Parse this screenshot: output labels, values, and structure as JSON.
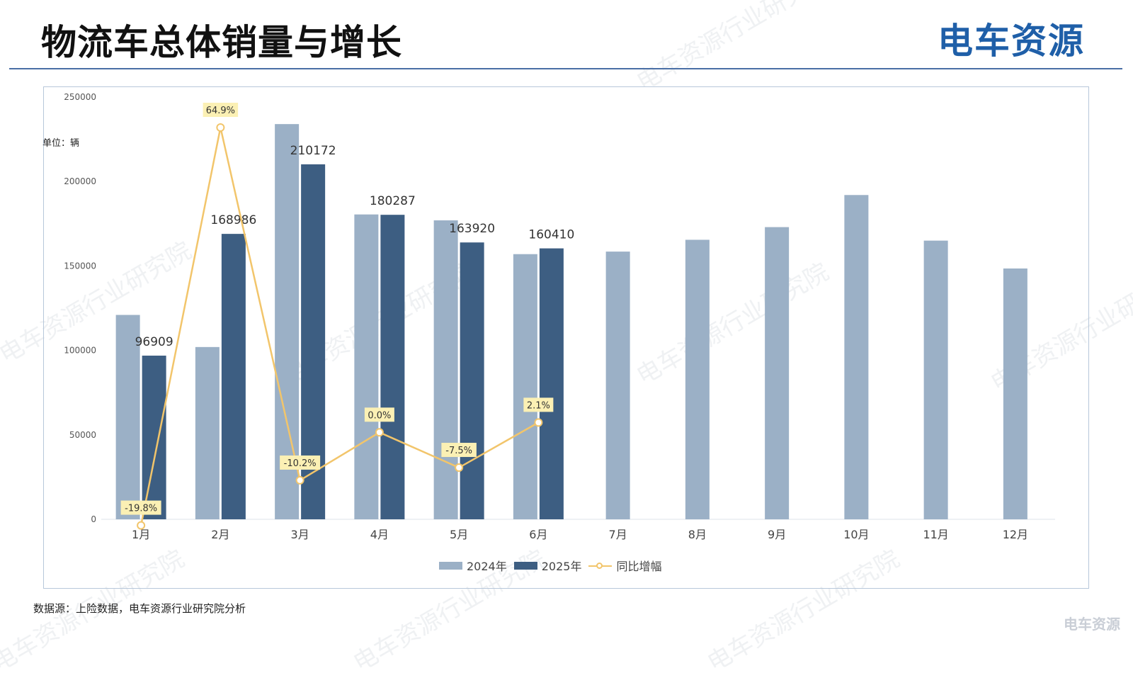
{
  "header": {
    "title": "物流车总体销量与增长",
    "logo_text": "电车资源"
  },
  "unit_label": "单位：辆",
  "source_note": "数据源：上险数据，电车资源行业研究院分析",
  "watermark_text": "电车资源行业研究院",
  "bottom_logo": "电车资源",
  "colors": {
    "series_2024": "#9bb0c6",
    "series_2025": "#3d5e82",
    "growth_line": "#f2c56b",
    "label_bg": "#fbf0b4",
    "title_rule": "#4a6fa5"
  },
  "chart_data": {
    "type": "bar",
    "categories": [
      "1月",
      "2月",
      "3月",
      "4月",
      "5月",
      "6月",
      "7月",
      "8月",
      "9月",
      "10月",
      "11月",
      "12月"
    ],
    "ylim": [
      0,
      250000
    ],
    "yticks": [
      "0",
      "50000",
      "100000",
      "150000",
      "200000",
      "250000"
    ],
    "legend_position": "bottom",
    "grid": false,
    "series": [
      {
        "name": "2024年",
        "values": [
          121000,
          102000,
          234000,
          180500,
          177000,
          157000,
          158500,
          165500,
          173000,
          192000,
          165000,
          148500
        ]
      },
      {
        "name": "2025年",
        "values": [
          96909,
          168986,
          210172,
          180287,
          163920,
          160410,
          null,
          null,
          null,
          null,
          null,
          null
        ],
        "data_labels": [
          "96909",
          "168986",
          "210172",
          "180287",
          "163920",
          "160410"
        ]
      }
    ],
    "line_series": {
      "name": "同比增幅",
      "axis": "secondary",
      "values": [
        -19.8,
        64.9,
        -10.2,
        0.0,
        -7.5,
        2.1
      ],
      "data_labels": [
        "-19.8%",
        "64.9%",
        "-10.2%",
        "0.0%",
        "-7.5%",
        "2.1%"
      ]
    }
  }
}
